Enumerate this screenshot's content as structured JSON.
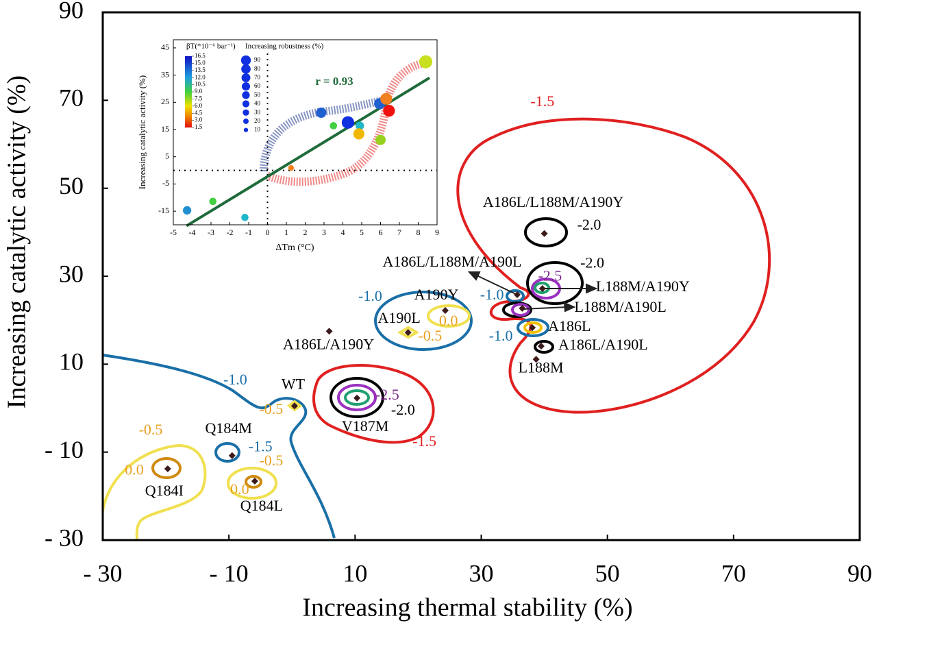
{
  "chart_data": [
    {
      "type": "scatter",
      "x_label": "Increasing thermal stability (%)",
      "y_label": "Increasing catalytic activity (%)",
      "xlim": [
        -30,
        90
      ],
      "ylim": [
        -30,
        90
      ],
      "xticks": [
        {
          "value": -30,
          "label": "- 30"
        },
        {
          "value": -10,
          "label": "- 10"
        },
        10,
        30,
        50,
        70,
        90
      ],
      "yticks": [
        {
          "value": -30,
          "label": "- 30"
        },
        {
          "value": -10,
          "label": "- 10"
        },
        10,
        30,
        50,
        70,
        90
      ],
      "color": "#3a1a1a",
      "labels": [
        "A186L/L188M/A190Y",
        "L188M/A190Y",
        "A186L/L188M/A190L",
        "L188M/A190L",
        "A186L",
        "A186L/A190L",
        "L188M",
        "A190Y",
        "A190L",
        "A186L/A190Y",
        "WT",
        "V187M",
        "Q184M",
        "Q184I",
        "Q184L"
      ],
      "x": [
        40.0,
        39.7,
        35.7,
        36.5,
        38.1,
        39.5,
        38.7,
        24.3,
        18.4,
        5.9,
        0.4,
        10.3,
        -9.5,
        -19.7,
        -5.9
      ],
      "y": [
        39.7,
        27.2,
        25.8,
        22.7,
        18.3,
        14.1,
        11.1,
        22.2,
        17.2,
        17.5,
        0.5,
        2.3,
        -10.8,
        -13.8,
        -16.6
      ],
      "annotations": [
        {
          "text": "-1.5",
          "x": 39.7,
          "y": 69.4,
          "color": "#e02020"
        },
        {
          "text": "-2.0",
          "x": 47.1,
          "y": 41.4,
          "color": "#000000"
        },
        {
          "text": "-2.0",
          "x": 47.6,
          "y": 32.7,
          "color": "#000000"
        },
        {
          "text": "-2.5",
          "x": 40.9,
          "y": 29.8,
          "color": "#7a2a8a"
        },
        {
          "text": "-1.0",
          "x": 31.7,
          "y": 25.5,
          "color": "#1a6fa8"
        },
        {
          "text": "-1.0",
          "x": 12.4,
          "y": 25.2,
          "color": "#1a6fa8"
        },
        {
          "text": "0.0",
          "x": 24.8,
          "y": 19.6,
          "color": "#e8a020"
        },
        {
          "text": "-0.5",
          "x": 21.9,
          "y": 16.1,
          "color": "#e8a020"
        },
        {
          "text": "-1.0",
          "x": 33.1,
          "y": 16.1,
          "color": "#1a6fa8"
        },
        {
          "text": "-1.0",
          "x": -9.0,
          "y": 6.2,
          "color": "#1a6fa8"
        },
        {
          "text": "-0.5",
          "x": -3.3,
          "y": -0.5,
          "color": "#e8a020"
        },
        {
          "text": "-2.5",
          "x": 15.1,
          "y": 2.7,
          "color": "#7a2a8a"
        },
        {
          "text": "-2.0",
          "x": 17.6,
          "y": -0.7,
          "color": "#000000"
        },
        {
          "text": "-1.5",
          "x": 21.0,
          "y": -7.9,
          "color": "#e02020"
        },
        {
          "text": "-1.5",
          "x": -5.0,
          "y": -9.0,
          "color": "#1a6fa8"
        },
        {
          "text": "-0.5",
          "x": -3.3,
          "y": -12.2,
          "color": "#e8a020"
        },
        {
          "text": "-0.5",
          "x": -22.4,
          "y": -5.2,
          "color": "#e8a020"
        },
        {
          "text": "0.0",
          "x": -25.0,
          "y": -14.3,
          "color": "#e8a020"
        },
        {
          "text": "0.0",
          "x": -8.3,
          "y": -18.8,
          "color": "#e8a020"
        }
      ]
    },
    {
      "type": "bubble",
      "x_label": "ΔTm (°C)",
      "y_label": "Increasing catalytic activity (%)",
      "xlim": [
        -5,
        9
      ],
      "ylim": [
        -20,
        48
      ],
      "xticks": [
        -5,
        -4,
        -3,
        -2,
        -1,
        0,
        1,
        2,
        3,
        4,
        5,
        6,
        7,
        8,
        9
      ],
      "yticks": [
        -15,
        -5,
        5,
        15,
        25,
        35,
        45
      ],
      "hlines": [
        0
      ],
      "vlines": [
        0
      ],
      "x": [
        2.85,
        4.27,
        4.9,
        4.85,
        3.5,
        6.0,
        5.95,
        6.3,
        6.45,
        8.4,
        -4.27,
        -2.9,
        -1.2,
        1.25
      ],
      "y": [
        21.2,
        17.6,
        16.4,
        13.4,
        16.4,
        11.2,
        24.5,
        26.3,
        21.9,
        39.9,
        -14.7,
        -11.4,
        -17.3,
        0.9
      ],
      "sizes": [
        50,
        80,
        30,
        60,
        20,
        50,
        60,
        70,
        70,
        90,
        30,
        20,
        20,
        10
      ],
      "colors": [
        "#2060d0",
        "#1030e0",
        "#20b8c8",
        "#f0b800",
        "#40d040",
        "#98d020",
        "#2060d0",
        "#f08020",
        "#f01010",
        "#c8e020",
        "#2090d0",
        "#40d040",
        "#20b8c8",
        "#f08020"
      ],
      "fit": {
        "x": [
          -4.3,
          8.6
        ],
        "y": [
          -20.4,
          34.0
        ],
        "color": "#1e6b3a",
        "label": "r = 0.93"
      },
      "colorbar": {
        "title": "βT(*10⁻⁶ bar⁻¹)",
        "ticks": [
          16.5,
          15.0,
          13.5,
          12.0,
          10.5,
          9.0,
          7.5,
          6.0,
          4.5,
          3.0,
          1.5
        ],
        "tick_labels": [
          "16.5",
          "15.0",
          "13.5",
          "12.0",
          "10.5",
          "9.0",
          "7.5",
          "6.0",
          "4.5",
          "3.0",
          "1.5"
        ]
      },
      "size_legend": {
        "title": "Increasing robustness (%)",
        "values": [
          90,
          80,
          70,
          60,
          50,
          40,
          30,
          20,
          10
        ]
      }
    }
  ]
}
